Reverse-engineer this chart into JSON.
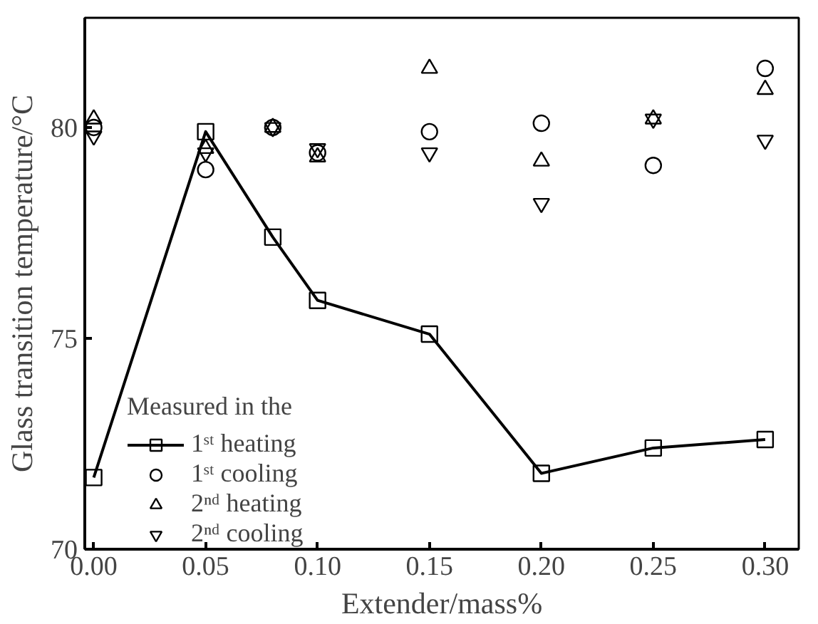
{
  "chart_data": {
    "type": "scatter",
    "xlabel": "Extender/mass%",
    "ylabel": "Glass transition temperature/°C",
    "legend_title": "Measured in the",
    "x": [
      0,
      0.05,
      0.08,
      0.1,
      0.15,
      0.2,
      0.25,
      0.3
    ],
    "series": [
      {
        "name": "1ˢᵗ heating",
        "type": "line",
        "marker": "square",
        "color": "#000000",
        "values": [
          71.7,
          79.9,
          77.4,
          75.9,
          75.1,
          71.8,
          72.4,
          72.6
        ]
      },
      {
        "name": "1ˢᵗ cooling",
        "marker": "circle",
        "color": "#000000",
        "values": [
          80.0,
          79.0,
          80.0,
          79.4,
          79.9,
          80.1,
          79.1,
          81.4
        ]
      },
      {
        "name": "2ⁿᵈ heating",
        "marker": "triangle",
        "color": "#000000",
        "values": [
          80.2,
          79.5,
          80.0,
          79.3,
          81.4,
          79.2,
          80.2,
          80.9
        ]
      },
      {
        "name": "2ⁿᵈ cooling",
        "color": "#000000",
        "values": [
          79.8,
          79.4,
          80.0,
          79.5,
          79.4,
          78.2,
          80.2,
          79.7
        ]
      }
    ],
    "xlim": [
      -0.004,
      0.315
    ],
    "ylim": [
      70,
      82.6
    ],
    "xticks": [
      {
        "value": 0,
        "label": "0.00"
      },
      0.05,
      {
        "value": 0.1,
        "label": "0.10"
      },
      0.15,
      {
        "value": 0.2,
        "label": "0.20"
      },
      0.25,
      {
        "value": 0.3,
        "label": "0.30"
      }
    ],
    "yticks": [
      70,
      75,
      80
    ],
    "grid": false,
    "legend": "bottom left"
  }
}
